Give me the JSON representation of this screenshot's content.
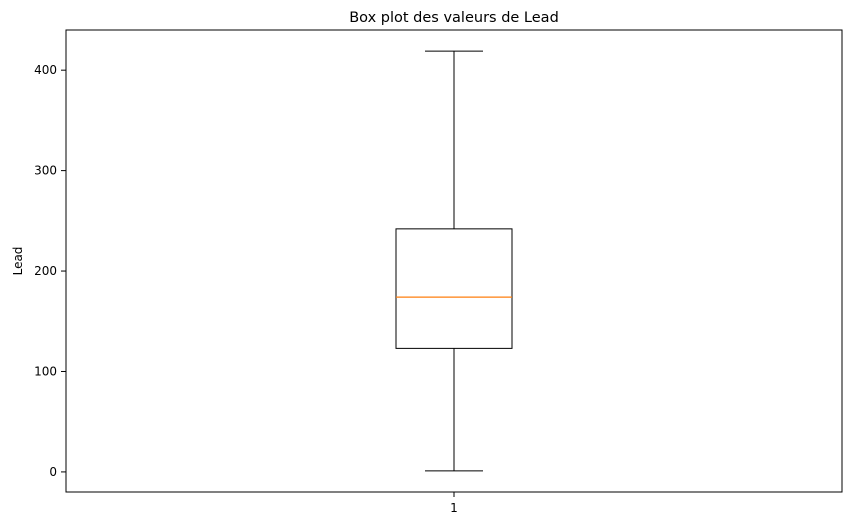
{
  "chart_data": {
    "type": "box",
    "title": "Box plot des valeurs de Lead",
    "xlabel": "",
    "ylabel": "Lead",
    "categories": [
      "1"
    ],
    "boxes": [
      {
        "category": "1",
        "min": 1,
        "q1": 123,
        "median": 174,
        "q3": 242,
        "max": 419
      }
    ],
    "ylim": [
      -20,
      440
    ],
    "y_ticks": [
      0,
      100,
      200,
      300,
      400
    ],
    "grid": false,
    "colors": {
      "box": "#000000",
      "median": "#ff7f0e",
      "axes": "#000000"
    }
  }
}
